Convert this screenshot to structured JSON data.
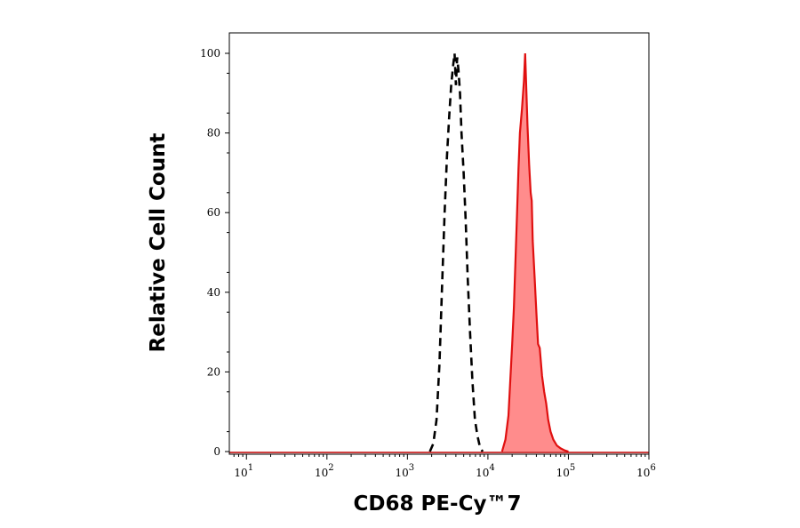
{
  "chart_data": {
    "type": "area",
    "xlabel": "CD68 PE-Cy™7",
    "ylabel": "Relative Cell Count",
    "x_scale": "log",
    "xlim": [
      5,
      1000000
    ],
    "ylim": [
      0,
      100
    ],
    "x_ticks": [
      {
        "value": 10,
        "base": "10",
        "exp": "1"
      },
      {
        "value": 100,
        "base": "10",
        "exp": "2"
      },
      {
        "value": 1000,
        "base": "10",
        "exp": "3"
      },
      {
        "value": 10000,
        "base": "10",
        "exp": "4"
      },
      {
        "value": 100000,
        "base": "10",
        "exp": "5"
      },
      {
        "value": 1000000,
        "base": "10",
        "exp": "6"
      }
    ],
    "y_ticks": [
      "0",
      "20",
      "40",
      "60",
      "80",
      "100"
    ],
    "grid": false,
    "legend": "none",
    "series": [
      {
        "style": "dashed-black-outline",
        "color": "#000000",
        "x": [
          1900,
          2100,
          2300,
          2500,
          2700,
          2900,
          3100,
          3300,
          3500,
          3700,
          3850,
          4000,
          4150,
          4300,
          4500,
          4700,
          5000,
          5300,
          5600,
          6000,
          6400,
          6900,
          7400,
          8000,
          8600
        ],
        "values": [
          0,
          2,
          8,
          22,
          42,
          60,
          74,
          84,
          92,
          97,
          100,
          92,
          99,
          96,
          90,
          80,
          70,
          58,
          44,
          30,
          18,
          8,
          4,
          1,
          0
        ]
      },
      {
        "style": "filled-red",
        "color": "#e01010",
        "fill": "#ff8c8c",
        "x": [
          15000,
          16500,
          18000,
          19000,
          20000,
          21000,
          22000,
          23000,
          24000,
          25000,
          26500,
          28000,
          29000,
          30000,
          31000,
          32500,
          34000,
          35000,
          36000,
          38000,
          40000,
          42000,
          44000,
          47000,
          50000,
          53000,
          56000,
          60000,
          65000,
          72000,
          80000,
          90000,
          100000
        ],
        "values": [
          0,
          3,
          9,
          18,
          27,
          36,
          48,
          60,
          71,
          80,
          86,
          93,
          100,
          91,
          82,
          72,
          65,
          63,
          53,
          44,
          35,
          27,
          26,
          19,
          15,
          12,
          8,
          5,
          3,
          1.5,
          0.8,
          0.3,
          0
        ]
      }
    ]
  }
}
